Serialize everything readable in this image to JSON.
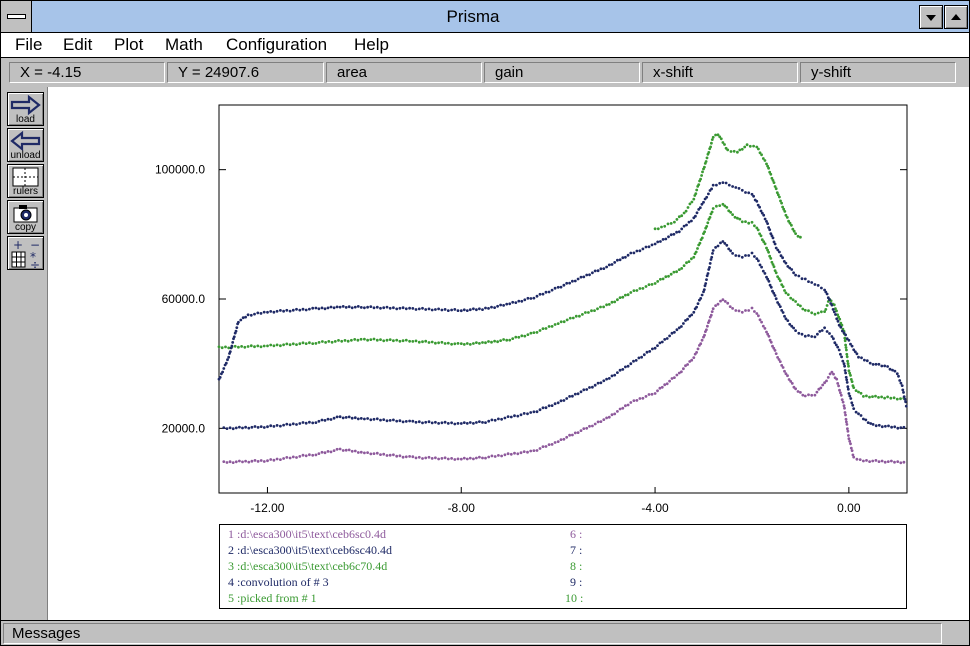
{
  "window": {
    "title": "Prisma"
  },
  "menu": [
    "File",
    "Edit",
    "Plot",
    "Math",
    "Configuration",
    "Help"
  ],
  "status": {
    "x_readout": "X =  -4.15",
    "y_readout": "Y =  24907.6",
    "area": "area",
    "gain": "gain",
    "xshift": "x-shift",
    "yshift": "y-shift"
  },
  "tools": [
    {
      "label": "load",
      "icon": "arrow-right-icon"
    },
    {
      "label": "unload",
      "icon": "arrow-left-icon"
    },
    {
      "label": "rulers",
      "icon": "rulers-icon"
    },
    {
      "label": "copy",
      "icon": "camera-icon"
    },
    {
      "label": "",
      "icon": "calculator-icon"
    }
  ],
  "chart_data": {
    "type": "scatter",
    "xlim": [
      -13,
      1.2
    ],
    "ylim": [
      0,
      120000
    ],
    "x_ticks": [
      -12,
      -8,
      -4,
      0
    ],
    "x_tick_labels": [
      "-12.00",
      "-8.00",
      "-4.00",
      "0.00"
    ],
    "y_ticks": [
      20000,
      60000,
      100000
    ],
    "y_tick_labels": [
      "20000.0",
      "60000.0",
      "100000.0"
    ],
    "grid": false,
    "series": [
      {
        "name": "1 :d:\\esca300\\it5\\text\\ceb6sc0.4d",
        "color": "#8e5a9c",
        "points": [
          [
            -12.9,
            9500
          ],
          [
            -12,
            10000
          ],
          [
            -11,
            12000
          ],
          [
            -10.5,
            13500
          ],
          [
            -10,
            12500
          ],
          [
            -9,
            11000
          ],
          [
            -8,
            10500
          ],
          [
            -7.5,
            11000
          ],
          [
            -6.5,
            13000
          ],
          [
            -6,
            16000
          ],
          [
            -5,
            23000
          ],
          [
            -4.5,
            28000
          ],
          [
            -4,
            31000
          ],
          [
            -3.5,
            37000
          ],
          [
            -3.2,
            42000
          ],
          [
            -3.0,
            48000
          ],
          [
            -2.8,
            57000
          ],
          [
            -2.6,
            60000
          ],
          [
            -2.4,
            57000
          ],
          [
            -2.2,
            56000
          ],
          [
            -2.0,
            57000
          ],
          [
            -1.9,
            55500
          ],
          [
            -1.7,
            50000
          ],
          [
            -1.5,
            43000
          ],
          [
            -1.3,
            37000
          ],
          [
            -1.1,
            32000
          ],
          [
            -0.9,
            30000
          ],
          [
            -0.7,
            30500
          ],
          [
            -0.5,
            34000
          ],
          [
            -0.35,
            37500
          ],
          [
            -0.25,
            35000
          ],
          [
            -0.1,
            27000
          ],
          [
            0,
            17000
          ],
          [
            0.1,
            11000
          ],
          [
            0.3,
            10000
          ],
          [
            1.2,
            9500
          ]
        ]
      },
      {
        "name": "2 :d:\\esca300\\it5\\text\\ceb6sc40.4d",
        "color": "#1f2a66",
        "points": [
          [
            -12.9,
            20000
          ],
          [
            -12,
            20500
          ],
          [
            -11,
            22000
          ],
          [
            -10.5,
            23500
          ],
          [
            -10,
            23000
          ],
          [
            -9,
            22000
          ],
          [
            -8,
            21500
          ],
          [
            -7.5,
            22000
          ],
          [
            -6.5,
            25000
          ],
          [
            -6,
            28000
          ],
          [
            -5,
            35000
          ],
          [
            -4.5,
            40000
          ],
          [
            -4,
            45000
          ],
          [
            -3.5,
            51000
          ],
          [
            -3.2,
            56000
          ],
          [
            -3.0,
            62000
          ],
          [
            -2.8,
            75000
          ],
          [
            -2.6,
            78000
          ],
          [
            -2.4,
            74000
          ],
          [
            -2.2,
            73000
          ],
          [
            -2.0,
            74000
          ],
          [
            -1.9,
            72500
          ],
          [
            -1.7,
            67000
          ],
          [
            -1.5,
            60000
          ],
          [
            -1.3,
            54000
          ],
          [
            -1.1,
            50000
          ],
          [
            -0.9,
            48500
          ],
          [
            -0.7,
            48500
          ],
          [
            -0.5,
            51000
          ],
          [
            -0.35,
            48500
          ],
          [
            -0.2,
            44000
          ],
          [
            -0.1,
            40000
          ],
          [
            0,
            31000
          ],
          [
            0.1,
            26000
          ],
          [
            0.3,
            23000
          ],
          [
            0.5,
            21000
          ],
          [
            1.2,
            20000
          ]
        ]
      },
      {
        "name": "3 :d:\\esca300\\it5\\text\\ceb6c70.4d",
        "color": "#3a9a32",
        "points": [
          [
            -13,
            45000
          ],
          [
            -12,
            45500
          ],
          [
            -11,
            46500
          ],
          [
            -10,
            47500
          ],
          [
            -9,
            47000
          ],
          [
            -8,
            46000
          ],
          [
            -7.5,
            46500
          ],
          [
            -7,
            47500
          ],
          [
            -6.5,
            49500
          ],
          [
            -6,
            52500
          ],
          [
            -5,
            58000
          ],
          [
            -4.5,
            62000
          ],
          [
            -4,
            65000
          ],
          [
            -3.5,
            69000
          ],
          [
            -3.2,
            73000
          ],
          [
            -3.0,
            80000
          ],
          [
            -2.8,
            88000
          ],
          [
            -2.6,
            89500
          ],
          [
            -2.4,
            86000
          ],
          [
            -2.2,
            84000
          ],
          [
            -2.0,
            83500
          ],
          [
            -1.9,
            82000
          ],
          [
            -1.7,
            76000
          ],
          [
            -1.5,
            68000
          ],
          [
            -1.3,
            62000
          ],
          [
            -1.1,
            59000
          ],
          [
            -0.9,
            56500
          ],
          [
            -0.7,
            55500
          ],
          [
            -0.5,
            56000
          ],
          [
            -0.4,
            60000
          ],
          [
            -0.3,
            58000
          ],
          [
            -0.1,
            50000
          ],
          [
            0,
            38000
          ],
          [
            0.1,
            32500
          ],
          [
            0.3,
            30000
          ],
          [
            0.8,
            29500
          ],
          [
            1.2,
            29000
          ]
        ]
      },
      {
        "name": "4 :convolution of #  3",
        "color": "#1f2a66",
        "points": [
          [
            -13,
            35000
          ],
          [
            -12.8,
            42000
          ],
          [
            -12.6,
            53000
          ],
          [
            -12.4,
            55000
          ],
          [
            -12,
            56000
          ],
          [
            -11,
            57000
          ],
          [
            -10.5,
            57500
          ],
          [
            -10,
            57500
          ],
          [
            -9,
            57000
          ],
          [
            -8,
            56500
          ],
          [
            -7.5,
            57000
          ],
          [
            -7,
            58500
          ],
          [
            -6.5,
            60500
          ],
          [
            -6,
            63500
          ],
          [
            -5,
            70000
          ],
          [
            -4.5,
            74000
          ],
          [
            -4,
            77000
          ],
          [
            -3.5,
            81000
          ],
          [
            -3.2,
            85000
          ],
          [
            -3.0,
            90000
          ],
          [
            -2.8,
            95000
          ],
          [
            -2.6,
            96000
          ],
          [
            -2.4,
            95000
          ],
          [
            -2.2,
            93500
          ],
          [
            -2.0,
            92500
          ],
          [
            -1.9,
            90000
          ],
          [
            -1.7,
            84000
          ],
          [
            -1.5,
            76000
          ],
          [
            -1.3,
            71000
          ],
          [
            -1.1,
            67500
          ],
          [
            -0.9,
            66000
          ],
          [
            -0.7,
            64500
          ],
          [
            -0.5,
            63000
          ],
          [
            -0.35,
            58000
          ],
          [
            -0.2,
            52000
          ],
          [
            0,
            47000
          ],
          [
            0.2,
            42000
          ],
          [
            0.5,
            40000
          ],
          [
            0.8,
            39000
          ],
          [
            1.0,
            37000
          ],
          [
            1.1,
            33000
          ],
          [
            1.2,
            26000
          ]
        ]
      },
      {
        "name": "5 :picked from #  1",
        "color": "#3a9a32",
        "points": [
          [
            -4.0,
            81500
          ],
          [
            -3.8,
            82500
          ],
          [
            -3.6,
            84000
          ],
          [
            -3.4,
            86500
          ],
          [
            -3.2,
            91000
          ],
          [
            -3.0,
            100000
          ],
          [
            -2.8,
            110000
          ],
          [
            -2.7,
            111000
          ],
          [
            -2.5,
            106000
          ],
          [
            -2.3,
            105500
          ],
          [
            -2.1,
            107500
          ],
          [
            -1.9,
            107000
          ],
          [
            -1.7,
            102000
          ],
          [
            -1.5,
            94000
          ],
          [
            -1.3,
            86000
          ],
          [
            -1.1,
            80000
          ],
          [
            -0.95,
            78500
          ]
        ]
      }
    ]
  },
  "legend": {
    "left": [
      {
        "text": "1 :d:\\esca300\\it5\\text\\ceb6sc0.4d",
        "color": "#8e5a9c"
      },
      {
        "text": "2 :d:\\esca300\\it5\\text\\ceb6sc40.4d",
        "color": "#1f2a66"
      },
      {
        "text": "3 :d:\\esca300\\it5\\text\\ceb6c70.4d",
        "color": "#3a9a32"
      },
      {
        "text": "4 :convolution of #  3",
        "color": "#1f2a66"
      },
      {
        "text": "5 :picked from #  1",
        "color": "#3a9a32"
      }
    ],
    "right": [
      {
        "text": "6 :",
        "color": "#8e5a9c"
      },
      {
        "text": "7 :",
        "color": "#1f2a66"
      },
      {
        "text": "8 :",
        "color": "#3a9a32"
      },
      {
        "text": "9 :",
        "color": "#1f2a66"
      },
      {
        "text": "10 :",
        "color": "#3a9a32"
      }
    ]
  },
  "messages": {
    "label": "Messages"
  }
}
